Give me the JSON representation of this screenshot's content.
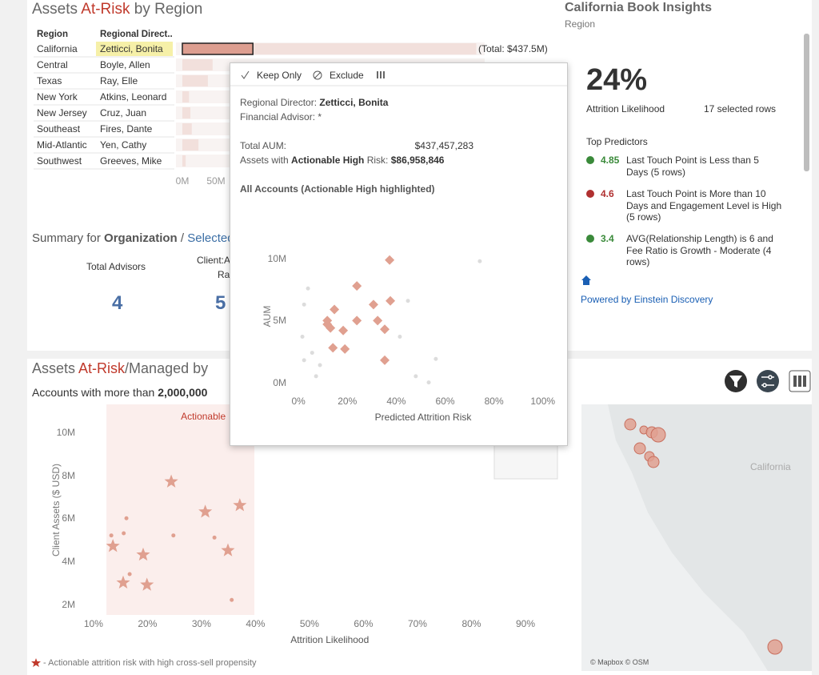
{
  "top_left": {
    "title": [
      "Assets",
      "At-Risk",
      "by Region"
    ],
    "columns": [
      "Region",
      "Regional Direct.."
    ],
    "rows": [
      [
        "California",
        "Zetticci, Bonita"
      ],
      [
        "Central",
        "Boyle, Allen"
      ],
      [
        "Texas",
        "Ray, Elle"
      ],
      [
        "New York",
        "Atkins, Leonard"
      ],
      [
        "New Jersey",
        "Cruz, Juan"
      ],
      [
        "Southeast",
        "Fires, Dante"
      ],
      [
        "Mid-Atlantic",
        "Yen, Cathy"
      ],
      [
        "Southwest",
        "Greeves, Mike"
      ]
    ],
    "bar_values": [
      437.5,
      45,
      38,
      10,
      12,
      14,
      24,
      5
    ],
    "highlight_value": 105,
    "xlim": [
      0,
      450
    ],
    "xticks": [
      {
        "value": 0,
        "label": "0M"
      },
      {
        "value": 50,
        "label": "50M"
      }
    ],
    "total_label": "(Total: $437.5M)"
  },
  "summary": {
    "title": [
      "Summary for",
      "Organization",
      "/",
      "Selected"
    ],
    "stat1_label": "Total Advisors",
    "stat1_value": "4",
    "stat2_label": [
      "Client:A",
      "Ra"
    ],
    "stat2_value": "5"
  },
  "insights": {
    "title": "California Book Insights",
    "subtitle": "Region",
    "big_value": "24%",
    "big_label": "Attrition Likelihood",
    "rows_label": "17 selected rows",
    "predictors_title": "Top Predictors",
    "predictors": [
      {
        "value": "4.85",
        "text": "Last Touch Point is Less than 5 Days (5 rows)",
        "color": "#3a8a3a"
      },
      {
        "value": "4.6",
        "text": "Last Touch Point is More than 10 Days and Engagement Level is High (5 rows)",
        "color": "#b03030"
      },
      {
        "value": "3.4",
        "text": "AVG(Relationship Length) is 6 and Fee Ratio is Growth - Moderate (4 rows)",
        "color": "#3a8a3a"
      }
    ],
    "powered": "Powered by Einstein Discovery"
  },
  "bottom": {
    "title": [
      "Assets",
      "At-Risk",
      "/Managed by"
    ],
    "subtitle": [
      "Accounts with more than",
      "2,000,000"
    ],
    "chart": {
      "type": "scatter",
      "x_label": "Attrition Likelihood",
      "y_label": "Client Assets ($ USD)",
      "region_label": "Actionable",
      "region": [
        12.4,
        39.8
      ],
      "color": "#e0a090",
      "xlim": [
        7.5,
        100
      ],
      "ylim": [
        1.5,
        11.3
      ],
      "xticks": [
        {
          "value": 10,
          "label": "10%"
        },
        {
          "value": 20,
          "label": "20%"
        },
        {
          "value": 30,
          "label": "30%"
        },
        {
          "value": 40,
          "label": "40%"
        },
        {
          "value": 50,
          "label": "50%"
        },
        {
          "value": 60,
          "label": "60%"
        },
        {
          "value": 70,
          "label": "70%"
        },
        {
          "value": 80,
          "label": "80%"
        },
        {
          "value": 90,
          "label": "90%"
        }
      ],
      "yticks": [
        {
          "value": 2,
          "label": "2M"
        },
        {
          "value": 4,
          "label": "4M"
        },
        {
          "value": 6,
          "label": "6M"
        },
        {
          "value": 8,
          "label": "8M"
        },
        {
          "value": 10,
          "label": "10M"
        }
      ],
      "stars": {
        "x": [
          24.4,
          30.7,
          37.1,
          13.6,
          19.2,
          34.9,
          15.5,
          19.9
        ],
        "y": [
          7.7,
          6.3,
          6.6,
          4.7,
          4.3,
          4.5,
          3.0,
          2.9
        ]
      },
      "dots": {
        "x": [
          13.3,
          16.1,
          15.6,
          24.8,
          32.4,
          16.7,
          35.6
        ],
        "y": [
          5.2,
          6.0,
          5.3,
          5.2,
          5.1,
          3.4,
          2.2
        ]
      }
    },
    "footnote": "- Actionable attrition risk with high cross-sell propensity"
  },
  "map": {
    "label": "California",
    "credit": "© Mapbox © OSM"
  },
  "popup": {
    "actions": [
      "Keep Only",
      "Exclude"
    ],
    "director_label": "Regional Director:",
    "director": "Zetticci, Bonita",
    "advisor_label": "Financial Advisor:",
    "advisor": "*",
    "aum_label": "Total AUM:",
    "aum": "$437,457,283",
    "risk_label": [
      "Assets with",
      "Actionable High",
      "Risk:"
    ],
    "risk": "$86,958,846",
    "chart_title": "All Accounts (Actionable High highlighted)",
    "chart": {
      "type": "scatter",
      "x_label": "Predicted Attrition Risk",
      "y_label": "AUM",
      "xlim": [
        -3,
        105
      ],
      "ylim": [
        -0.8,
        11.5
      ],
      "xticks": [
        {
          "value": 0,
          "label": "0%"
        },
        {
          "value": 20,
          "label": "20%"
        },
        {
          "value": 40,
          "label": "40%"
        },
        {
          "value": 60,
          "label": "60%"
        },
        {
          "value": 80,
          "label": "80%"
        },
        {
          "value": 100,
          "label": "100%"
        }
      ],
      "yticks": [
        {
          "value": 0,
          "label": "0M"
        },
        {
          "value": 5,
          "label": "5M"
        },
        {
          "value": 10,
          "label": "10M"
        }
      ],
      "highlighted": {
        "x": [
          37.3,
          23.9,
          37.6,
          30.7,
          14.7,
          11.8,
          23.9,
          32.4,
          13.1,
          18.3,
          35.3,
          14.1,
          19.0,
          35.3,
          11.8
        ],
        "y": [
          9.9,
          7.8,
          6.6,
          6.3,
          5.9,
          5.0,
          5.0,
          5.0,
          4.4,
          4.2,
          4.3,
          2.8,
          2.7,
          1.8,
          4.7
        ]
      },
      "others": {
        "x": [
          74.2,
          44.8,
          1.6,
          2.3,
          5.6,
          7.2,
          48,
          41.5,
          2.3,
          3.9,
          8.8,
          53.3,
          56.2
        ],
        "y": [
          9.8,
          6.6,
          3.7,
          1.8,
          2.4,
          0.5,
          0.5,
          3.7,
          6.3,
          7.6,
          1.4,
          0,
          1.9
        ]
      }
    }
  }
}
